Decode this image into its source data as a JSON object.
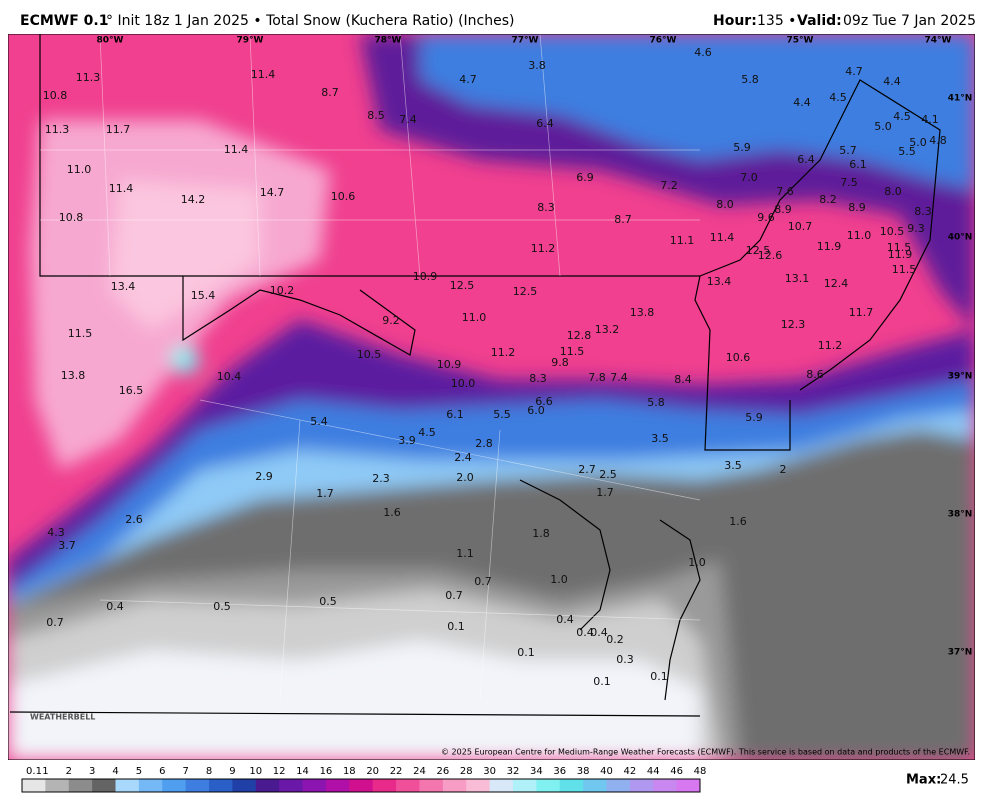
{
  "header": {
    "model": "ECMWF 0.1",
    "info": "° Init 18z 1 Jan 2025 • Total Snow (Kuchera Ratio) (Inches)",
    "hour_label": "Hour:",
    "hour": "135 •",
    "valid_label": "Valid:",
    "valid": "09z Tue 7 Jan 2025"
  },
  "lon_labels": [
    "80°W",
    "79°W",
    "78°W",
    "77°W",
    "76°W",
    "75°W",
    "74°W"
  ],
  "lat_labels": [
    "41°N",
    "40°N",
    "39°N",
    "38°N",
    "37°N"
  ],
  "map_values": [
    "11.3",
    "10.8",
    "11.3",
    "11.7",
    "11.4",
    "8.7",
    "8.5",
    "7.4",
    "4.7",
    "3.8",
    "4.6",
    "5.8",
    "4.7",
    "4.4",
    "4.4",
    "4.5",
    "4.5",
    "4.1",
    "5.0",
    "6.4",
    "11.0",
    "11.4",
    "11.4",
    "14.2",
    "14.7",
    "10.6",
    "5.9",
    "6.4",
    "5.7",
    "6.1",
    "5.5",
    "5.0",
    "4.8",
    "6.9",
    "7.2",
    "7.0",
    "7.6",
    "7.5",
    "8.0",
    "8.2",
    "8.9",
    "8.9",
    "8.3",
    "8.7",
    "8.0",
    "9.6",
    "10.7",
    "8.3",
    "10.8",
    "11.0",
    "10.5",
    "9.3",
    "11.9",
    "11.1",
    "11.4",
    "11.2",
    "12.5",
    "12.6",
    "11.5",
    "11.9",
    "11.5",
    "13.4",
    "15.4",
    "10.2",
    "10.9",
    "12.5",
    "12.5",
    "13.4",
    "13.1",
    "12.4",
    "11.5",
    "9.2",
    "11.0",
    "12.8",
    "13.2",
    "13.8",
    "12.3",
    "11.7",
    "13.8",
    "16.5",
    "10.4",
    "10.5",
    "11.2",
    "11.5",
    "9.8",
    "10.9",
    "10.0",
    "8.3",
    "7.8",
    "7.4",
    "8.4",
    "10.6",
    "11.2",
    "8.6",
    "6.6",
    "6.0",
    "5.5",
    "6.1",
    "5.8",
    "5.9",
    "5.4",
    "3.9",
    "4.5",
    "2.8",
    "3.5",
    "2.4",
    "3.5",
    "2",
    "2.7",
    "2.5",
    "2.9",
    "2.3",
    "2.0",
    "1.7",
    "1.7",
    "1.6",
    "2.6",
    "1.6",
    "1.8",
    "4.3",
    "3.7",
    "1.1",
    "1.0",
    "0.7",
    "1.0",
    "0.7",
    "0.4",
    "0.5",
    "0.5",
    "0.7",
    "0.1",
    "0.4",
    "0.4",
    "0.4",
    "0.2",
    "0.1",
    "0.3",
    "0.1",
    "0.1"
  ],
  "colorbar": {
    "labels": [
      "0.1",
      "1",
      "2",
      "3",
      "4",
      "5",
      "6",
      "7",
      "8",
      "9",
      "10",
      "12",
      "14",
      "16",
      "18",
      "20",
      "22",
      "24",
      "26",
      "28",
      "30",
      "32",
      "34",
      "36",
      "38",
      "40",
      "42",
      "44",
      "46",
      "48"
    ],
    "colors": [
      "#e6e6e6",
      "#b4b4b4",
      "#8c8c8c",
      "#646464",
      "#a8d8fb",
      "#74b8f5",
      "#4f9ef0",
      "#3d7ee0",
      "#2a5fc8",
      "#2040a8",
      "#4a1a90",
      "#6a18a8",
      "#8c14b0",
      "#b010a8",
      "#d0108f",
      "#e82a8a",
      "#f0509a",
      "#f476ae",
      "#f79cc4",
      "#f9bcd6",
      "#d8e8f8",
      "#b0f0f8",
      "#80f0f0",
      "#60e0e8",
      "#70c8f0",
      "#90b0f0",
      "#b098f0",
      "#c888f0",
      "#d878f0"
    ]
  },
  "max_label": "Max:",
  "max_value": "24.5",
  "logo": "WEATHERBELL",
  "copyright": "© 2025 European Centre for Medium-Range Weather Forecasts (ECMWF). This service is based on data and products of the ECMWF."
}
